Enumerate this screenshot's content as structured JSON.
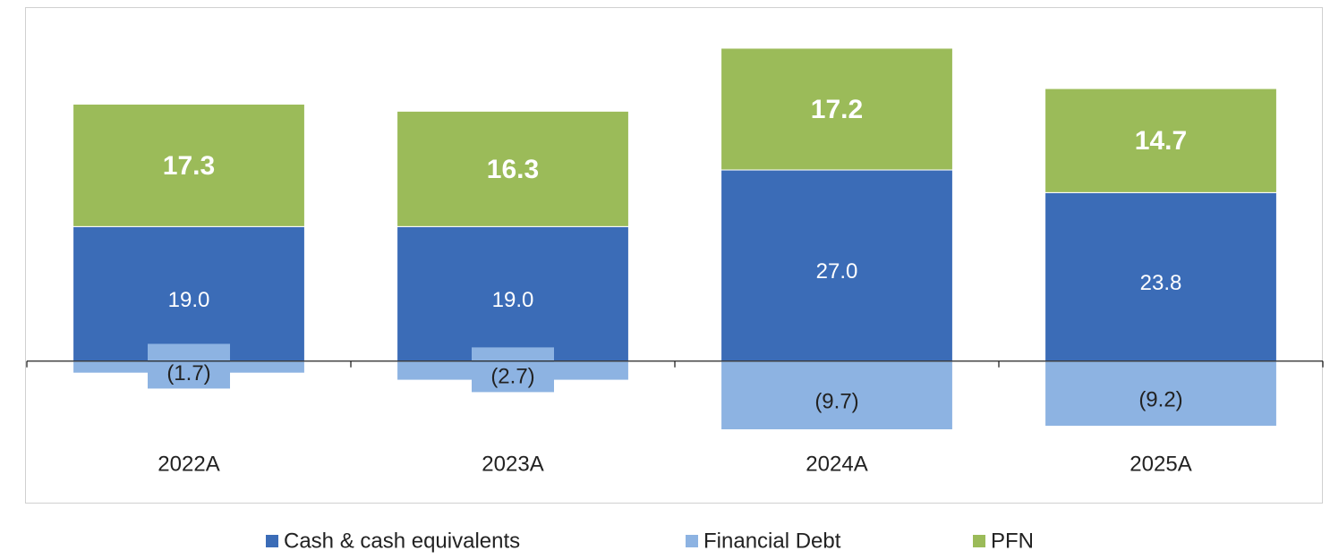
{
  "chart_data": {
    "type": "stacked_bar",
    "categories": [
      "2022A",
      "2023A",
      "2024A",
      "2025A"
    ],
    "series": [
      {
        "name": "Cash & cash equivalents",
        "color": "#3b6cb7",
        "values": [
          19.0,
          19.0,
          27.0,
          23.8
        ],
        "value_labels": [
          "19.0",
          "19.0",
          "27.0",
          "23.8"
        ]
      },
      {
        "name": "Financial Debt",
        "color": "#8db3e2",
        "values": [
          -1.7,
          -2.7,
          -9.7,
          -9.2
        ],
        "value_labels": [
          "(1.7)",
          "(2.7)",
          "(9.7)",
          "(9.2)"
        ]
      },
      {
        "name": "PFN",
        "color": "#9bbb59",
        "values": [
          17.3,
          16.3,
          17.2,
          14.7
        ]
      }
    ],
    "ylim": [
      -20,
      50
    ],
    "legend": "bottom"
  }
}
